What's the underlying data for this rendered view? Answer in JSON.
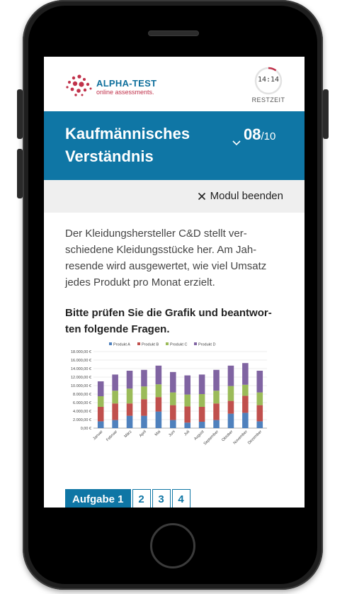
{
  "brand": {
    "name": "ALPHA-TEST",
    "tagline": "online assessments."
  },
  "timer": {
    "time": "14:14",
    "label": "RESTZEIT",
    "remaining_fraction": 0.1
  },
  "module": {
    "title": "Kaufmännisches Verständnis",
    "current": "08",
    "total": "/10"
  },
  "actions": {
    "end_module": "Modul beenden"
  },
  "content": {
    "intro": "Der Kleidungshersteller C&D stellt ver-schiedene Kleidungsstücke her. Am Jah-resende wird ausgewertet, wie viel Umsatz jedes Produkt pro Monat erzielt.",
    "instruction": "Bitte prüfen Sie die Grafik und beantwor-ten folgende Fragen."
  },
  "chart_data": {
    "type": "bar",
    "stacked": true,
    "categories": [
      "Januar",
      "Februar",
      "März",
      "April",
      "Mai",
      "Juni",
      "Juli",
      "August",
      "September",
      "Oktober",
      "November",
      "Dezember"
    ],
    "series": [
      {
        "name": "Produkt A",
        "color": "#4f81bd",
        "values": [
          1600,
          1900,
          2900,
          2900,
          3900,
          1900,
          1300,
          1500,
          1900,
          3400,
          3600,
          1600
        ]
      },
      {
        "name": "Produkt B",
        "color": "#c0504d",
        "values": [
          3400,
          3900,
          2900,
          3900,
          3400,
          3500,
          3800,
          3500,
          3900,
          3000,
          4000,
          3800
        ]
      },
      {
        "name": "Produkt C",
        "color": "#9bbb59",
        "values": [
          2500,
          3000,
          3500,
          3000,
          3000,
          3000,
          2800,
          3000,
          3000,
          3500,
          2600,
          3000
        ]
      },
      {
        "name": "Produkt D",
        "color": "#8064a2",
        "values": [
          3500,
          3800,
          4200,
          3900,
          4400,
          4800,
          4500,
          4600,
          4900,
          4800,
          5100,
          5100
        ]
      }
    ],
    "yticks": [
      "0,00 €",
      "2.000,00 €",
      "4.000,00 €",
      "6.000,00 €",
      "8.000,00 €",
      "10.000,00 €",
      "12.000,00 €",
      "14.000,00 €",
      "16.000,00 €",
      "18.000,00 €"
    ],
    "ylim": [
      0,
      18000
    ],
    "grid": true,
    "legend": "top"
  },
  "tasks": [
    {
      "label": "Aufgabe 1",
      "active": true
    },
    {
      "label": "2",
      "active": false
    },
    {
      "label": "3",
      "active": false
    },
    {
      "label": "4",
      "active": false
    }
  ],
  "colors": {
    "accent": "#0f76a5",
    "brand_red": "#c0314a"
  }
}
